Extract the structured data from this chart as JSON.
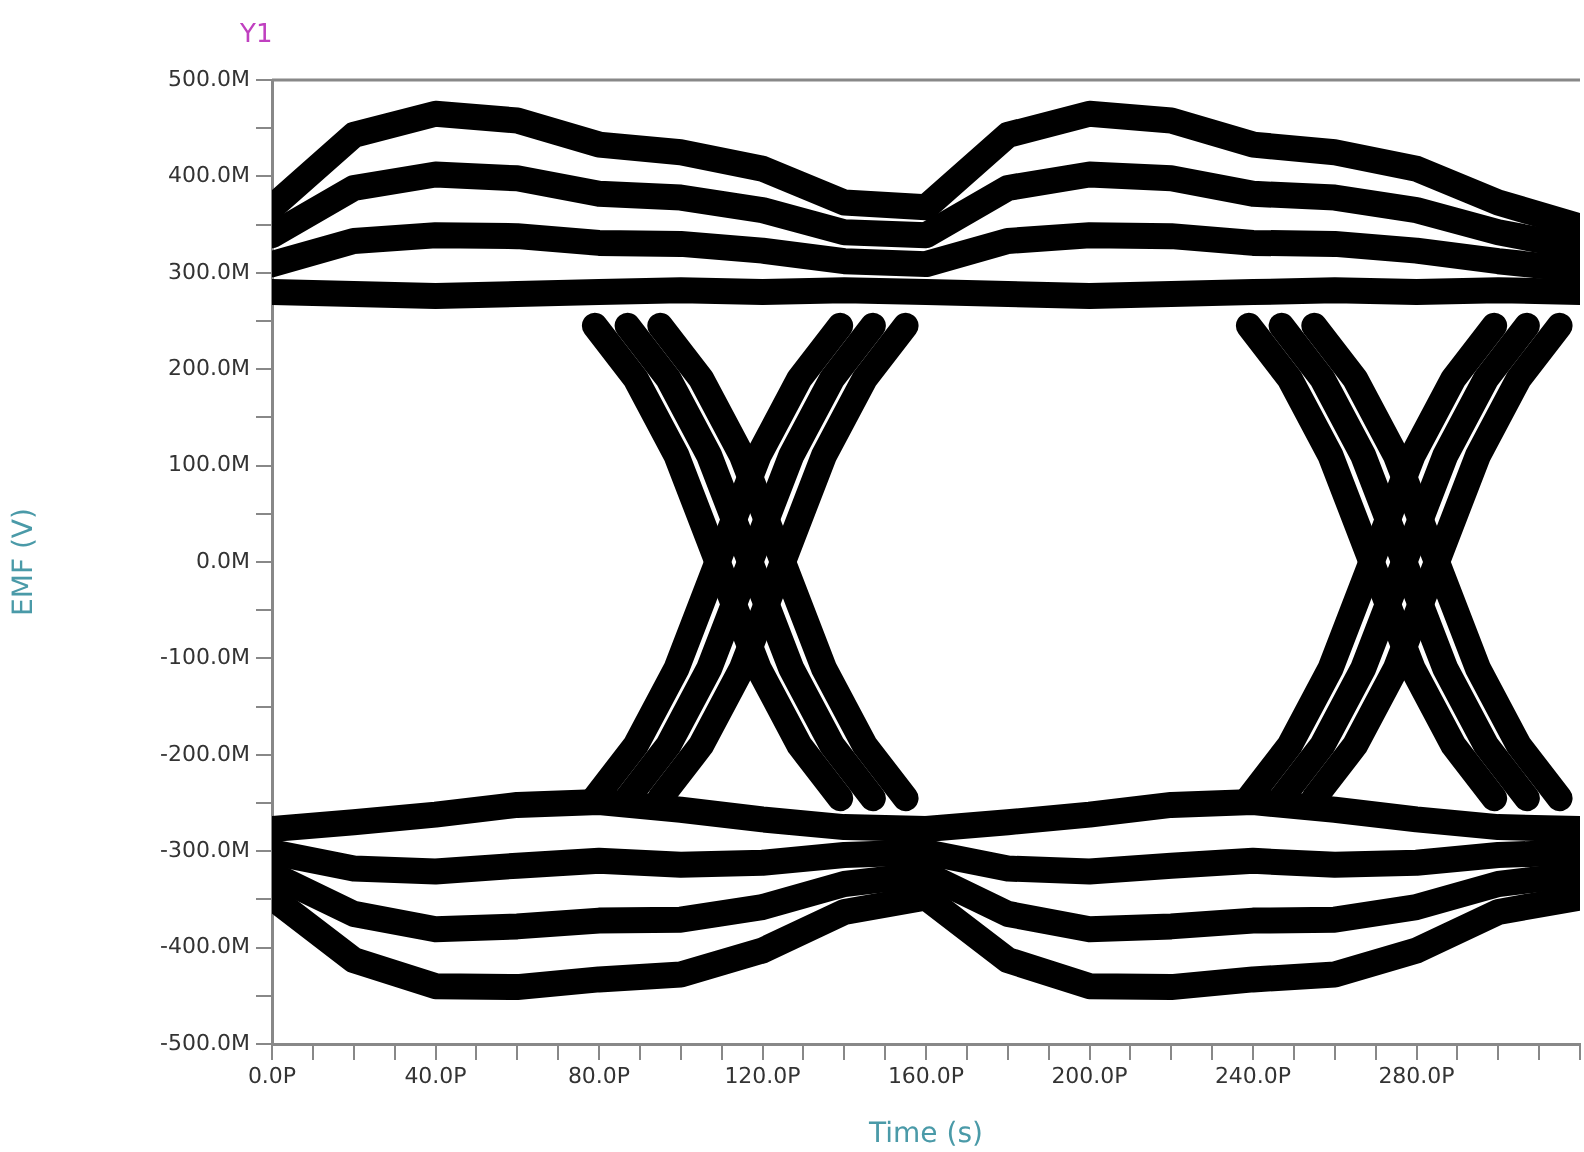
{
  "chart_data": {
    "type": "line",
    "xlabel": "Time (s)",
    "ylabel": "EMF (V)",
    "annotations": [
      "Y1"
    ],
    "xlim": [
      0,
      320
    ],
    "ylim": [
      -500,
      500
    ],
    "xticks": [
      {
        "value": 0,
        "label": "0.0P"
      },
      {
        "value": 10,
        "label": null
      },
      {
        "value": 20,
        "label": null
      },
      {
        "value": 30,
        "label": null
      },
      {
        "value": 40,
        "label": "40.0P"
      },
      {
        "value": 50,
        "label": null
      },
      {
        "value": 60,
        "label": null
      },
      {
        "value": 70,
        "label": null
      },
      {
        "value": 80,
        "label": "80.0P"
      },
      {
        "value": 90,
        "label": null
      },
      {
        "value": 100,
        "label": null
      },
      {
        "value": 110,
        "label": null
      },
      {
        "value": 120,
        "label": "120.0P"
      },
      {
        "value": 130,
        "label": null
      },
      {
        "value": 140,
        "label": null
      },
      {
        "value": 150,
        "label": null
      },
      {
        "value": 160,
        "label": "160.0P"
      },
      {
        "value": 170,
        "label": null
      },
      {
        "value": 180,
        "label": null
      },
      {
        "value": 190,
        "label": null
      },
      {
        "value": 200,
        "label": "200.0P"
      },
      {
        "value": 210,
        "label": null
      },
      {
        "value": 220,
        "label": null
      },
      {
        "value": 230,
        "label": null
      },
      {
        "value": 240,
        "label": "240.0P"
      },
      {
        "value": 250,
        "label": null
      },
      {
        "value": 260,
        "label": null
      },
      {
        "value": 270,
        "label": null
      },
      {
        "value": 280,
        "label": "280.0P"
      },
      {
        "value": 290,
        "label": null
      },
      {
        "value": 300,
        "label": null
      },
      {
        "value": 310,
        "label": null
      },
      {
        "value": 320,
        "label": null
      }
    ],
    "yticks": [
      {
        "value": -500,
        "label": "-500.0M"
      },
      {
        "value": -450,
        "label": null
      },
      {
        "value": -400,
        "label": "-400.0M"
      },
      {
        "value": -350,
        "label": null
      },
      {
        "value": -300,
        "label": "-300.0M"
      },
      {
        "value": -250,
        "label": null
      },
      {
        "value": -200,
        "label": "-200.0M"
      },
      {
        "value": -150,
        "label": null
      },
      {
        "value": -100,
        "label": "-100.0M"
      },
      {
        "value": -50,
        "label": null
      },
      {
        "value": 0,
        "label": "0.0M"
      },
      {
        "value": 50,
        "label": null
      },
      {
        "value": 100,
        "label": "100.0M"
      },
      {
        "value": 150,
        "label": null
      },
      {
        "value": 200,
        "label": "200.0M"
      },
      {
        "value": 250,
        "label": null
      },
      {
        "value": 300,
        "label": "300.0M"
      },
      {
        "value": 350,
        "label": null
      },
      {
        "value": 400,
        "label": "400.0M"
      },
      {
        "value": 450,
        "label": null
      },
      {
        "value": 500,
        "label": "500.0M"
      }
    ],
    "x": [
      0,
      20,
      40,
      60,
      80,
      100,
      120,
      140,
      160,
      180,
      200,
      220,
      240,
      260,
      280,
      300,
      320
    ],
    "grid": false,
    "legend": false,
    "marker": "none",
    "line_style": "solid",
    "series": [
      {
        "color": "#000000",
        "values": [
          280,
          278,
          276,
          278,
          280,
          282,
          280,
          282,
          280,
          278,
          276,
          278,
          280,
          282,
          280,
          282,
          280
        ]
      },
      {
        "color": "#000000",
        "values": [
          309,
          333,
          339,
          338,
          331,
          330,
          323,
          312,
          309,
          333,
          339,
          338,
          331,
          330,
          323,
          312,
          303
        ]
      },
      {
        "color": "#000000",
        "values": [
          339,
          388,
          402,
          398,
          382,
          378,
          365,
          342,
          339,
          388,
          402,
          398,
          382,
          378,
          365,
          342,
          326
        ]
      },
      {
        "color": "#000000",
        "values": [
          368,
          443,
          465,
          458,
          433,
          425,
          408,
          373,
          368,
          443,
          465,
          458,
          433,
          425,
          408,
          373,
          348
        ]
      },
      {
        "color": "#000000",
        "values": [
          -277,
          -270,
          -262,
          -252,
          -249,
          -257,
          -267,
          -275,
          -277,
          -270,
          -262,
          -252,
          -249,
          -257,
          -267,
          -275,
          -277
        ]
      },
      {
        "color": "#000000",
        "values": [
          -301,
          -318,
          -321,
          -315,
          -310,
          -314,
          -312,
          -304,
          -301,
          -318,
          -321,
          -315,
          -310,
          -314,
          -312,
          -304,
          -301
        ]
      },
      {
        "color": "#000000",
        "values": [
          -324,
          -365,
          -381,
          -378,
          -372,
          -371,
          -358,
          -334,
          -324,
          -365,
          -381,
          -378,
          -372,
          -371,
          -358,
          -334,
          -324
        ]
      },
      {
        "color": "#000000",
        "values": [
          -348,
          -413,
          -440,
          -441,
          -433,
          -428,
          -403,
          -363,
          -348,
          -413,
          -440,
          -441,
          -433,
          -428,
          -403,
          -363,
          -348
        ]
      },
      {
        "color": "#000000",
        "x": [
          79,
          89,
          99,
          109,
          119,
          129,
          139
        ],
        "values": [
          245,
          190,
          110,
          0,
          -110,
          -190,
          -245
        ]
      },
      {
        "color": "#000000",
        "x": [
          87,
          97,
          107,
          117,
          127,
          137,
          147
        ],
        "values": [
          245,
          190,
          110,
          0,
          -110,
          -190,
          -245
        ]
      },
      {
        "color": "#000000",
        "x": [
          95,
          105,
          115,
          125,
          135,
          145,
          155
        ],
        "values": [
          245,
          190,
          110,
          0,
          -110,
          -190,
          -245
        ]
      },
      {
        "color": "#000000",
        "x": [
          79,
          89,
          99,
          109,
          119,
          129,
          139
        ],
        "values": [
          -245,
          -190,
          -110,
          0,
          110,
          190,
          245
        ]
      },
      {
        "color": "#000000",
        "x": [
          87,
          97,
          107,
          117,
          127,
          137,
          147
        ],
        "values": [
          -245,
          -190,
          -110,
          0,
          110,
          190,
          245
        ]
      },
      {
        "color": "#000000",
        "x": [
          95,
          105,
          115,
          125,
          135,
          145,
          155
        ],
        "values": [
          -245,
          -190,
          -110,
          0,
          110,
          190,
          245
        ]
      },
      {
        "color": "#000000",
        "x": [
          239,
          249,
          259,
          269,
          279,
          289,
          299
        ],
        "values": [
          245,
          190,
          110,
          0,
          -110,
          -190,
          -245
        ]
      },
      {
        "color": "#000000",
        "x": [
          247,
          257,
          267,
          277,
          287,
          297,
          307
        ],
        "values": [
          245,
          190,
          110,
          0,
          -110,
          -190,
          -245
        ]
      },
      {
        "color": "#000000",
        "x": [
          255,
          265,
          275,
          285,
          295,
          305,
          315
        ],
        "values": [
          245,
          190,
          110,
          0,
          -110,
          -190,
          -245
        ]
      },
      {
        "color": "#000000",
        "x": [
          239,
          249,
          259,
          269,
          279,
          289,
          299
        ],
        "values": [
          -245,
          -190,
          -110,
          0,
          110,
          190,
          245
        ]
      },
      {
        "color": "#000000",
        "x": [
          247,
          257,
          267,
          277,
          287,
          297,
          307
        ],
        "values": [
          -245,
          -190,
          -110,
          0,
          110,
          190,
          245
        ]
      },
      {
        "color": "#000000",
        "x": [
          255,
          265,
          275,
          285,
          295,
          305,
          315
        ],
        "values": [
          -245,
          -190,
          -110,
          0,
          110,
          190,
          245
        ]
      }
    ]
  }
}
